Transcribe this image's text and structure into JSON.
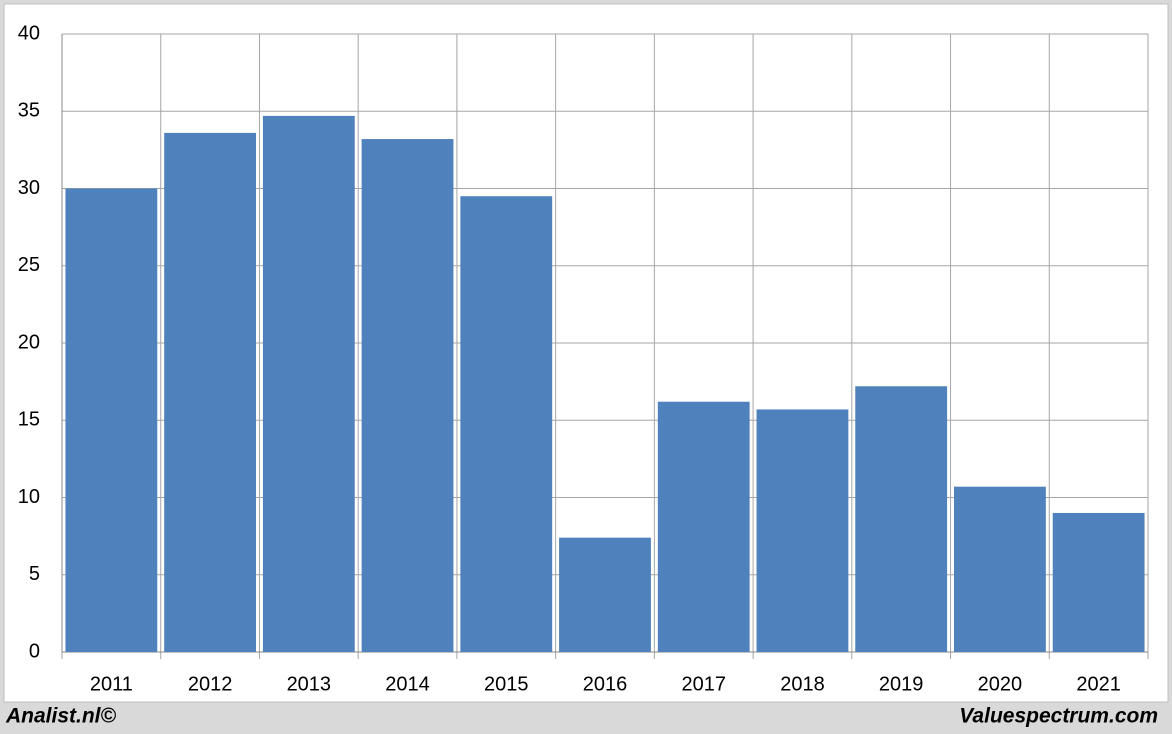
{
  "chart_data": {
    "type": "bar",
    "categories": [
      "2011",
      "2012",
      "2013",
      "2014",
      "2015",
      "2016",
      "2017",
      "2018",
      "2019",
      "2020",
      "2021"
    ],
    "values": [
      30.0,
      33.6,
      34.7,
      33.2,
      29.5,
      7.4,
      16.2,
      15.7,
      17.2,
      10.7,
      9.0
    ],
    "color": "#4f81bd",
    "ylim": [
      0,
      40
    ],
    "yticks": [
      0,
      5,
      10,
      15,
      20,
      25,
      30,
      35,
      40
    ],
    "grid": true,
    "footer_left": "Analist.nl©",
    "footer_right": "Valuespectrum.com"
  }
}
